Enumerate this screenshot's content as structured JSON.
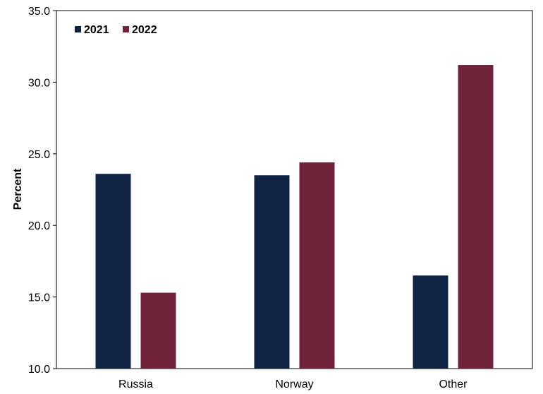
{
  "chart_data": {
    "type": "bar",
    "categories": [
      "Russia",
      "Norway",
      "Other"
    ],
    "series": [
      {
        "name": "2021",
        "values": [
          23.6,
          23.5,
          16.5
        ],
        "color": "#0f2444"
      },
      {
        "name": "2022",
        "values": [
          15.3,
          24.4,
          31.2
        ],
        "color": "#6f243b"
      }
    ],
    "xlabel": "",
    "ylabel": "Percent",
    "ylim": [
      10.0,
      35.0
    ],
    "yticks": [
      "10.0",
      "15.0",
      "20.0",
      "25.0",
      "30.0",
      "35.0"
    ],
    "grid": false,
    "legend_position": "top-left"
  }
}
